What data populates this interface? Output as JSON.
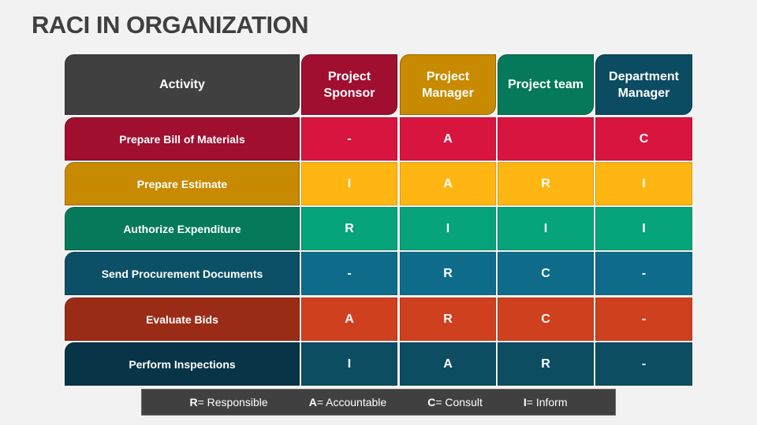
{
  "title": "RACI IN ORGANIZATION",
  "header": {
    "activity": "Activity",
    "roles": [
      "Project Sponsor",
      "Project Manager",
      "Project team",
      "Department Manager"
    ],
    "colors": [
      "#A00F30",
      "#C88A00",
      "#06795A",
      "#0B4C62"
    ],
    "activity_color": "#404040"
  },
  "rows": [
    {
      "activity": "Prepare Bill of Materials",
      "values": [
        "-",
        "A",
        "",
        "C"
      ],
      "label_color": "#A00F30",
      "cell_color": "#D7153F"
    },
    {
      "activity": "Prepare Estimate",
      "values": [
        "I",
        "A",
        "R",
        "I"
      ],
      "label_color": "#C88A00",
      "cell_color": "#FFB612"
    },
    {
      "activity": "Authorize Expenditure",
      "values": [
        "R",
        "I",
        "I",
        "I"
      ],
      "label_color": "#06795A",
      "cell_color": "#07A37A"
    },
    {
      "activity": "Send Procurement Documents",
      "values": [
        "-",
        "R",
        "C",
        "-"
      ],
      "label_color": "#0C5068",
      "cell_color": "#0E6C8A"
    },
    {
      "activity": "Evaluate Bids",
      "values": [
        "A",
        "R",
        "C",
        "-"
      ],
      "label_color": "#9A2C17",
      "cell_color": "#CF401F"
    },
    {
      "activity": "Perform Inspections",
      "values": [
        "I",
        "A",
        "R",
        "-"
      ],
      "label_color": "#083447",
      "cell_color": "#0C4D62"
    }
  ],
  "legend": [
    {
      "key": "R",
      "text": "= Responsible"
    },
    {
      "key": "A",
      "text": "= Accountable"
    },
    {
      "key": "C",
      "text": "= Consult"
    },
    {
      "key": "I",
      "text": "= Inform"
    }
  ]
}
